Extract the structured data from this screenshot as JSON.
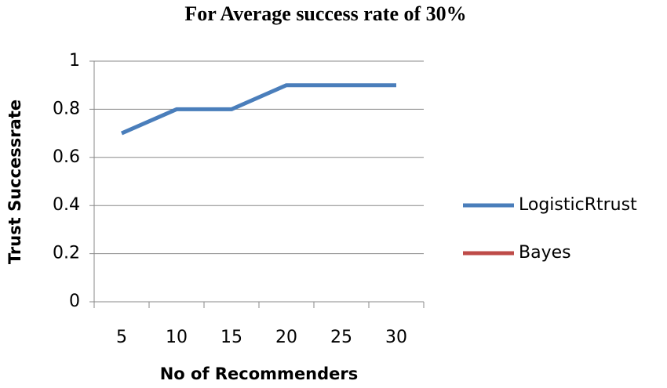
{
  "chart_data": {
    "type": "line",
    "title": "For Average success rate  of 30%",
    "x_label": "No of Recommenders",
    "y_label": "Trust Successrate",
    "categories": [
      "5",
      "10",
      "15",
      "20",
      "25",
      "30"
    ],
    "series": [
      {
        "name": "LogisticRtrust",
        "color": "#4a7ebb",
        "values": [
          0.7,
          0.8,
          0.8,
          0.9,
          0.9,
          0.9
        ]
      },
      {
        "name": "Bayes",
        "color": "#be4b48",
        "values": [
          null,
          null,
          null,
          null,
          null,
          null
        ]
      }
    ],
    "ylim": [
      0,
      1
    ],
    "yticks": [
      0,
      0.2,
      0.4,
      0.6,
      0.8,
      1
    ],
    "grid": true,
    "legend": "right"
  }
}
